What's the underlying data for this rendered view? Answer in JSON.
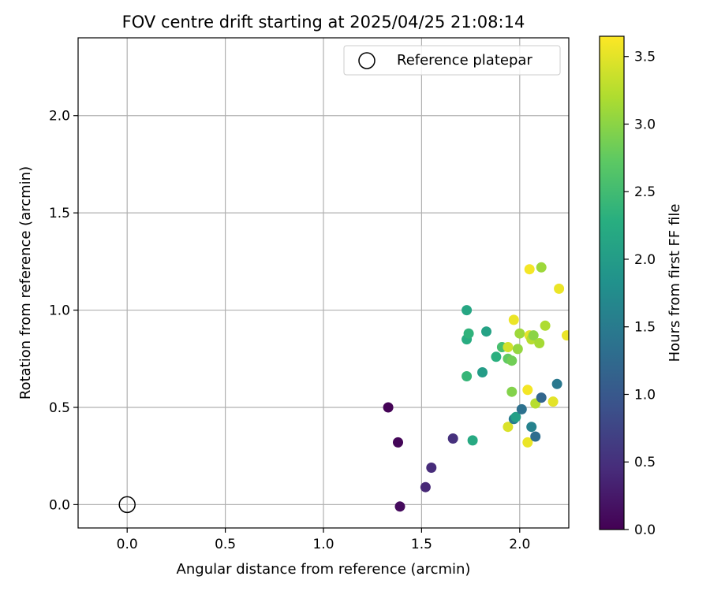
{
  "chart_data": {
    "type": "scatter",
    "title": "FOV centre drift starting at 2025/04/25 21:08:14",
    "xlabel": "Angular distance from reference (arcmin)",
    "ylabel": "Rotation from reference (arcmin)",
    "xlim": [
      -0.25,
      2.25
    ],
    "ylim": [
      -0.12,
      2.4
    ],
    "x_ticks": [
      0.0,
      0.5,
      1.0,
      1.5,
      2.0
    ],
    "x_tick_labels": [
      "0.0",
      "0.5",
      "1.0",
      "1.5",
      "2.0"
    ],
    "y_ticks": [
      0.0,
      0.5,
      1.0,
      1.5,
      2.0
    ],
    "y_tick_labels": [
      "0.0",
      "0.5",
      "1.0",
      "1.5",
      "2.0"
    ],
    "grid": true,
    "legend": {
      "position": "top-right",
      "entries": [
        "Reference platepar"
      ]
    },
    "reference_point": {
      "name": "Reference platepar",
      "x": 0.0,
      "y": 0.0,
      "marker": "open-circle"
    },
    "colorbar": {
      "label": "Hours from first FF file",
      "range": [
        0.0,
        3.65
      ],
      "ticks": [
        0.0,
        0.5,
        1.0,
        1.5,
        2.0,
        2.5,
        3.0,
        3.5
      ],
      "tick_labels": [
        "0.0",
        "0.5",
        "1.0",
        "1.5",
        "2.0",
        "2.5",
        "3.0",
        "3.5"
      ],
      "colormap": "viridis"
    },
    "points": [
      {
        "x": 1.33,
        "y": 0.5,
        "c": 0.02
      },
      {
        "x": 1.38,
        "y": 0.32,
        "c": 0.05
      },
      {
        "x": 1.39,
        "y": -0.01,
        "c": 0.1
      },
      {
        "x": 1.52,
        "y": 0.09,
        "c": 0.4
      },
      {
        "x": 1.55,
        "y": 0.19,
        "c": 0.45
      },
      {
        "x": 1.66,
        "y": 0.34,
        "c": 0.5
      },
      {
        "x": 1.73,
        "y": 1.0,
        "c": 2.15
      },
      {
        "x": 1.73,
        "y": 0.85,
        "c": 2.25
      },
      {
        "x": 1.74,
        "y": 0.88,
        "c": 2.35
      },
      {
        "x": 1.73,
        "y": 0.66,
        "c": 2.4
      },
      {
        "x": 1.76,
        "y": 0.33,
        "c": 2.2
      },
      {
        "x": 1.81,
        "y": 0.68,
        "c": 2.0
      },
      {
        "x": 1.83,
        "y": 0.89,
        "c": 2.1
      },
      {
        "x": 1.88,
        "y": 0.76,
        "c": 2.3
      },
      {
        "x": 1.91,
        "y": 0.81,
        "c": 2.55
      },
      {
        "x": 1.94,
        "y": 0.81,
        "c": 3.4
      },
      {
        "x": 1.94,
        "y": 0.75,
        "c": 2.75
      },
      {
        "x": 1.96,
        "y": 0.74,
        "c": 2.85
      },
      {
        "x": 1.96,
        "y": 0.58,
        "c": 2.95
      },
      {
        "x": 1.94,
        "y": 0.4,
        "c": 3.45
      },
      {
        "x": 1.97,
        "y": 0.95,
        "c": 3.55
      },
      {
        "x": 1.97,
        "y": 0.44,
        "c": 1.5
      },
      {
        "x": 1.98,
        "y": 0.45,
        "c": 2.05
      },
      {
        "x": 1.99,
        "y": 0.8,
        "c": 3.05
      },
      {
        "x": 2.0,
        "y": 0.88,
        "c": 3.1
      },
      {
        "x": 2.01,
        "y": 0.49,
        "c": 1.35
      },
      {
        "x": 2.04,
        "y": 0.59,
        "c": 3.6
      },
      {
        "x": 2.04,
        "y": 0.32,
        "c": 3.55
      },
      {
        "x": 2.05,
        "y": 1.21,
        "c": 3.6
      },
      {
        "x": 2.05,
        "y": 0.87,
        "c": 3.5
      },
      {
        "x": 2.06,
        "y": 0.4,
        "c": 1.6
      },
      {
        "x": 2.06,
        "y": 0.85,
        "c": 3.25
      },
      {
        "x": 2.07,
        "y": 0.87,
        "c": 3.0
      },
      {
        "x": 2.08,
        "y": 0.35,
        "c": 1.3
      },
      {
        "x": 2.08,
        "y": 0.52,
        "c": 3.25
      },
      {
        "x": 2.1,
        "y": 0.83,
        "c": 3.15
      },
      {
        "x": 2.11,
        "y": 0.55,
        "c": 1.2
      },
      {
        "x": 2.11,
        "y": 1.22,
        "c": 3.1
      },
      {
        "x": 2.13,
        "y": 0.92,
        "c": 3.2
      },
      {
        "x": 2.17,
        "y": 0.53,
        "c": 3.5
      },
      {
        "x": 2.19,
        "y": 0.62,
        "c": 1.45
      },
      {
        "x": 2.2,
        "y": 1.11,
        "c": 3.55
      },
      {
        "x": 2.24,
        "y": 0.87,
        "c": 3.55
      }
    ]
  }
}
